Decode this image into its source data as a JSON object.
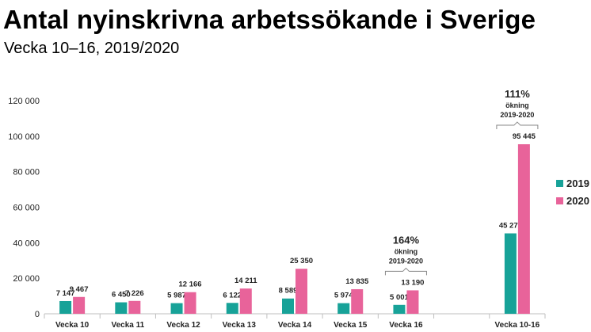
{
  "chart_data": {
    "type": "bar",
    "title": "Antal nyinskrivna arbetssökande i Sverige",
    "subtitle": "Vecka 10–16, 2019/2020",
    "categories": [
      "Vecka 10",
      "Vecka 11",
      "Vecka 12",
      "Vecka 13",
      "Vecka 14",
      "Vecka 15",
      "Vecka 16",
      "",
      "Vecka 10-16"
    ],
    "series": [
      {
        "name": "2019",
        "color": "#17A298",
        "values": [
          7147,
          6450,
          5987,
          6122,
          8589,
          5974,
          5001,
          null,
          45270
        ],
        "labels": [
          "7 147",
          "6 450",
          "5 987",
          "6 122",
          "8 589",
          "5 974",
          "5 001",
          "",
          "45 270"
        ]
      },
      {
        "name": "2020",
        "color": "#E8639A",
        "values": [
          9467,
          7226,
          12166,
          14211,
          25350,
          13835,
          13190,
          null,
          95445
        ],
        "labels": [
          "9 467",
          "7 226",
          "12 166",
          "14 211",
          "25 350",
          "13 835",
          "13 190",
          "",
          "95 445"
        ]
      }
    ],
    "ylim": [
      0,
      120000
    ],
    "yticks": [
      0,
      20000,
      40000,
      60000,
      80000,
      100000,
      120000
    ],
    "ytick_labels": [
      "0",
      "20 000",
      "40 000",
      "60 000",
      "80 000",
      "100 000",
      "120 000"
    ],
    "grid": false,
    "legend_position": "right",
    "annotations": [
      {
        "category": "Vecka 16",
        "percent": "164%",
        "line1": "ökning",
        "line2": "2019-2020"
      },
      {
        "category": "Vecka 10-16",
        "percent": "111%",
        "line1": "ökning",
        "line2": "2019-2020"
      }
    ]
  }
}
